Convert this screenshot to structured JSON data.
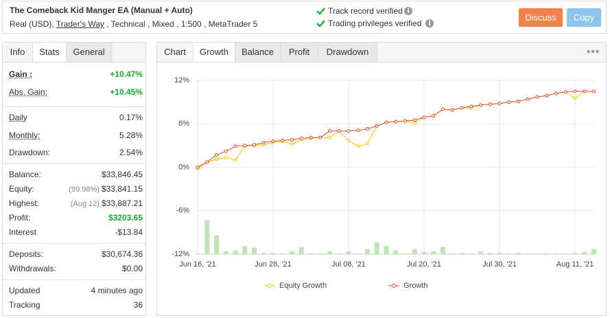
{
  "header": {
    "title": "The Comeback Kid Manger EA (Manual + Auto)",
    "account": [
      "Real (USD), ",
      "Trader's Way",
      " , Technical , Mixed , 1:500 , MetaTrader 5"
    ],
    "verifications": [
      "Track record verified",
      "Trading privileges verified"
    ],
    "buttons": [
      "Discuss",
      "Copy"
    ]
  },
  "stats": {
    "tabs": [
      "Info",
      "Stats",
      "General"
    ],
    "active_tab": 1,
    "groups": [
      {
        "rows": [
          {
            "label": "Gain :",
            "value": "+10.47%",
            "color": "#1ea532",
            "underline": true,
            "bold": true
          },
          {
            "label": "Abs. Gain:",
            "value": "+10.45%",
            "color": "#1ea532",
            "underline": true
          }
        ]
      },
      {
        "rows": [
          {
            "label": "Daily",
            "value": "0.17%",
            "underline": true
          },
          {
            "label": "Monthly:",
            "value": "5.28%",
            "underline": true
          },
          {
            "label": "Drawdown:",
            "value": "2.54%"
          }
        ]
      },
      {
        "rows": [
          {
            "label": "Balance:",
            "value": "$33,846.45"
          },
          {
            "label": "Equity:",
            "note": "(99.98%)",
            "value": "$33,841.15"
          },
          {
            "label": "Highest:",
            "note": "(Aug 12)",
            "value": "$33,887.21"
          },
          {
            "label": "Profit:",
            "value": "$3203.65",
            "color": "#1ea532"
          },
          {
            "label": "Interest",
            "value": "-$13.84"
          }
        ]
      },
      {
        "rows": [
          {
            "label": "Deposits:",
            "value": "$30,674.36"
          },
          {
            "label": "Withdrawals:",
            "value": "$0.00"
          }
        ]
      },
      {
        "rows": [
          {
            "label": "Updated",
            "value": "4 minutes ago"
          },
          {
            "label": "Tracking",
            "value": "36"
          }
        ]
      }
    ]
  },
  "chart_panel": {
    "tabs": [
      "Chart",
      "Growth",
      "Balance",
      "Profit",
      "Drawdown"
    ],
    "active_tab": 1
  },
  "chart_data": {
    "type": "line",
    "categories": [
      "Jun 16, '21",
      null,
      null,
      null,
      null,
      null,
      null,
      null,
      "Jun 28, '21",
      null,
      null,
      null,
      null,
      null,
      null,
      null,
      "Jul 08, '21",
      null,
      null,
      null,
      null,
      null,
      null,
      null,
      "Jul 20, '21",
      null,
      null,
      null,
      null,
      null,
      null,
      null,
      "Jul 30, '21",
      null,
      null,
      null,
      null,
      null,
      null,
      null,
      "Aug 11, '21",
      null,
      null
    ],
    "series": [
      {
        "name": "Equity Growth",
        "color": "#f5c400",
        "values": [
          -0.2,
          0.7,
          1.1,
          1.3,
          1.0,
          2.9,
          3.0,
          3.1,
          3.4,
          3.6,
          3.2,
          3.8,
          4.0,
          4.1,
          4.1,
          5.0,
          3.7,
          2.9,
          3.3,
          5.7,
          6.2,
          6.3,
          6.4,
          6.1,
          6.9,
          7.1,
          8.0,
          7.9,
          8.2,
          8.2,
          8.6,
          8.7,
          8.8,
          9.0,
          9.1,
          9.4,
          9.7,
          9.9,
          10.2,
          10.4,
          9.5,
          10.5,
          10.47
        ]
      },
      {
        "name": "Growth",
        "color": "#e64a2e",
        "values": [
          0,
          0.7,
          1.7,
          2.2,
          2.9,
          3.0,
          3.1,
          3.4,
          3.6,
          3.7,
          3.8,
          4.0,
          4.1,
          4.1,
          5.0,
          5.0,
          5.0,
          5.1,
          5.3,
          5.7,
          6.2,
          6.3,
          6.4,
          6.5,
          6.9,
          7.1,
          8.0,
          7.9,
          8.2,
          8.4,
          8.6,
          8.7,
          8.8,
          9.0,
          9.1,
          9.4,
          9.7,
          9.9,
          10.2,
          10.4,
          10.5,
          10.5,
          10.47
        ]
      }
    ],
    "bars": {
      "color": "#bfe5b5",
      "values": [
        -11.9,
        -7.3,
        -9.4,
        -11.6,
        -11.5,
        -10.9,
        -11.1,
        -11.8,
        -11.8,
        -11.9,
        -11.6,
        -11.0,
        -11.9,
        -11.9,
        -11.6,
        -11.9,
        -11.6,
        -11.9,
        -11.3,
        -10.4,
        -10.9,
        -11.5,
        -11.9,
        -11.3,
        -11.7,
        -11.6,
        -11.0,
        -11.9,
        -11.8,
        -11.9,
        -11.6,
        -11.8,
        -11.8,
        -11.9,
        -11.8,
        -11.9,
        -11.9,
        -11.9,
        -11.9,
        -11.9,
        -11.8,
        -11.7,
        -11.3
      ]
    },
    "ylim": [
      -12,
      12
    ],
    "yticks": [
      {
        "value": 12,
        "label": "12%"
      },
      {
        "value": 6,
        "label": "6%"
      },
      {
        "value": 0,
        "label": "0%"
      },
      {
        "value": -6,
        "label": "-6%"
      },
      {
        "value": -12,
        "label": "-12%"
      }
    ],
    "grid": true,
    "legend": "bottom"
  }
}
